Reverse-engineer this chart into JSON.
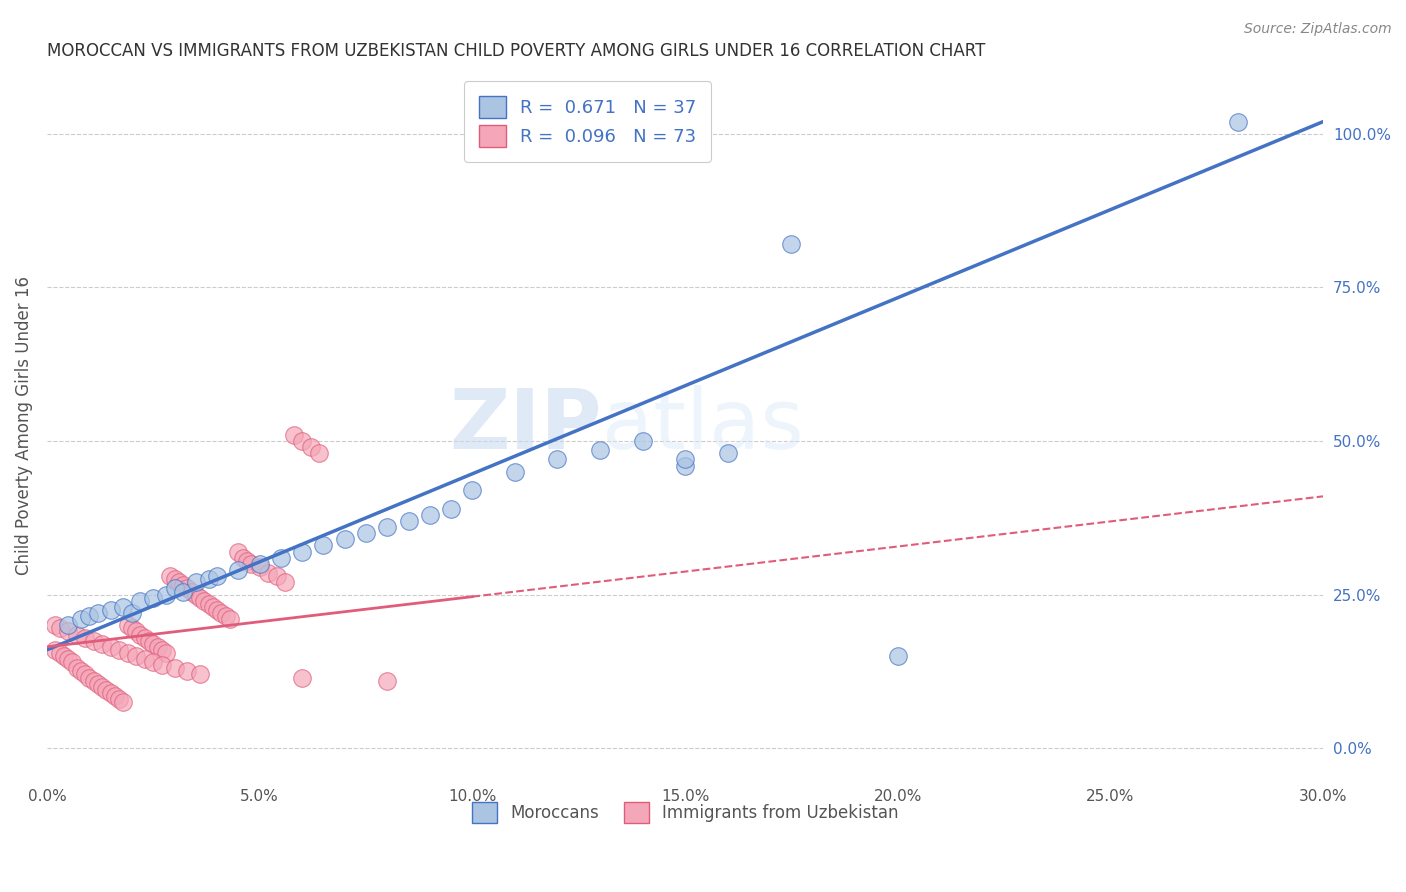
{
  "title": "MOROCCAN VS IMMIGRANTS FROM UZBEKISTAN CHILD POVERTY AMONG GIRLS UNDER 16 CORRELATION CHART",
  "source": "Source: ZipAtlas.com",
  "xlabel_ticks": [
    "0.0%",
    "5.0%",
    "10.0%",
    "15.0%",
    "20.0%",
    "25.0%",
    "30.0%"
  ],
  "xlabel_vals": [
    0.0,
    0.05,
    0.1,
    0.15,
    0.2,
    0.25,
    0.3
  ],
  "ylabel": "Child Poverty Among Girls Under 16",
  "ylabel_right_ticks": [
    "0.0%",
    "25.0%",
    "50.0%",
    "75.0%",
    "100.0%"
  ],
  "ylabel_right_vals": [
    0.0,
    0.25,
    0.5,
    0.75,
    1.0
  ],
  "xmin": 0.0,
  "xmax": 0.3,
  "ymin": -0.05,
  "ymax": 1.1,
  "blue_R": 0.671,
  "blue_N": 37,
  "pink_R": 0.096,
  "pink_N": 73,
  "blue_color": "#aac4e2",
  "blue_line_color": "#4472c4",
  "pink_color": "#f4a7b9",
  "pink_line_color": "#e05c7a",
  "watermark_zip": "ZIP",
  "watermark_atlas": "atlas",
  "legend_label_blue": "Moroccans",
  "legend_label_pink": "Immigrants from Uzbekistan",
  "blue_scatter_x": [
    0.005,
    0.008,
    0.01,
    0.012,
    0.015,
    0.018,
    0.02,
    0.022,
    0.025,
    0.028,
    0.03,
    0.032,
    0.035,
    0.038,
    0.04,
    0.045,
    0.05,
    0.055,
    0.06,
    0.065,
    0.07,
    0.075,
    0.08,
    0.085,
    0.09,
    0.095,
    0.1,
    0.11,
    0.12,
    0.13,
    0.14,
    0.15,
    0.16,
    0.175,
    0.2,
    0.28,
    0.15
  ],
  "blue_scatter_y": [
    0.2,
    0.21,
    0.215,
    0.22,
    0.225,
    0.23,
    0.22,
    0.24,
    0.245,
    0.25,
    0.26,
    0.255,
    0.27,
    0.275,
    0.28,
    0.29,
    0.3,
    0.31,
    0.32,
    0.33,
    0.34,
    0.35,
    0.36,
    0.37,
    0.38,
    0.39,
    0.42,
    0.45,
    0.47,
    0.485,
    0.5,
    0.46,
    0.48,
    0.82,
    0.15,
    1.02,
    0.47
  ],
  "pink_scatter_x": [
    0.002,
    0.003,
    0.004,
    0.005,
    0.006,
    0.007,
    0.008,
    0.009,
    0.01,
    0.011,
    0.012,
    0.013,
    0.014,
    0.015,
    0.016,
    0.017,
    0.018,
    0.019,
    0.02,
    0.021,
    0.022,
    0.023,
    0.024,
    0.025,
    0.026,
    0.027,
    0.028,
    0.029,
    0.03,
    0.031,
    0.032,
    0.033,
    0.034,
    0.035,
    0.036,
    0.037,
    0.038,
    0.039,
    0.04,
    0.041,
    0.042,
    0.043,
    0.045,
    0.046,
    0.047,
    0.048,
    0.05,
    0.052,
    0.054,
    0.056,
    0.058,
    0.06,
    0.062,
    0.064,
    0.002,
    0.003,
    0.005,
    0.007,
    0.009,
    0.011,
    0.013,
    0.015,
    0.017,
    0.019,
    0.021,
    0.023,
    0.025,
    0.027,
    0.03,
    0.033,
    0.036,
    0.06,
    0.08
  ],
  "pink_scatter_y": [
    0.16,
    0.155,
    0.15,
    0.145,
    0.14,
    0.13,
    0.125,
    0.12,
    0.115,
    0.11,
    0.105,
    0.1,
    0.095,
    0.09,
    0.085,
    0.08,
    0.075,
    0.2,
    0.195,
    0.19,
    0.185,
    0.18,
    0.175,
    0.17,
    0.165,
    0.16,
    0.155,
    0.28,
    0.275,
    0.27,
    0.265,
    0.26,
    0.255,
    0.25,
    0.245,
    0.24,
    0.235,
    0.23,
    0.225,
    0.22,
    0.215,
    0.21,
    0.32,
    0.31,
    0.305,
    0.3,
    0.295,
    0.285,
    0.28,
    0.27,
    0.51,
    0.5,
    0.49,
    0.48,
    0.2,
    0.195,
    0.19,
    0.185,
    0.18,
    0.175,
    0.17,
    0.165,
    0.16,
    0.155,
    0.15,
    0.145,
    0.14,
    0.135,
    0.13,
    0.125,
    0.12,
    0.115,
    0.11
  ],
  "blue_trend_x0": 0.0,
  "blue_trend_y0": 0.16,
  "blue_trend_x1": 0.3,
  "blue_trend_y1": 1.02,
  "pink_trend_x0": 0.0,
  "pink_trend_y0": 0.165,
  "pink_trend_x1": 0.3,
  "pink_trend_y1": 0.41
}
